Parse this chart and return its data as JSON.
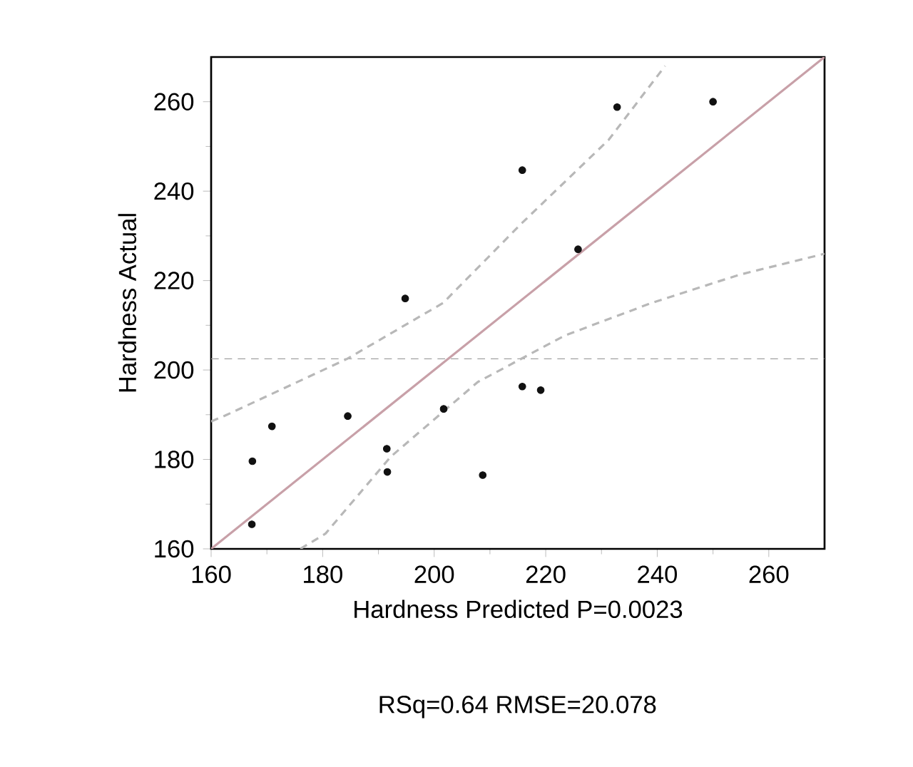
{
  "chart_data": {
    "type": "scatter",
    "xlabel": "Hardness Predicted P=0.0023",
    "ylabel": "Hardness Actual",
    "annotations": [
      "RSq=0.64 RMSE=20.078"
    ],
    "xlim": [
      160,
      270
    ],
    "ylim": [
      160,
      270
    ],
    "xticks": [
      160,
      180,
      200,
      220,
      240,
      260
    ],
    "yticks": [
      160,
      180,
      200,
      220,
      240,
      260
    ],
    "marker": "circle",
    "ref_lines": [
      {
        "axis": "y",
        "value": 202.5,
        "color": "#a0a0a0",
        "line_style": "dashed"
      }
    ],
    "series": [
      {
        "color": "#111111",
        "x": [
          167.3,
          167.4,
          170.9,
          184.5,
          191.5,
          191.6,
          194.8,
          201.7,
          208.7,
          215.8,
          215.8,
          219.1,
          225.8,
          232.8,
          250.0
        ],
        "values": [
          165.5,
          179.6,
          187.4,
          189.7,
          182.4,
          177.2,
          216.0,
          191.3,
          176.5,
          244.7,
          196.3,
          195.5,
          227.0,
          258.8,
          260.0
        ]
      },
      {
        "type": "line",
        "color": "#c8a0a8",
        "line_style": "solid",
        "marker": "none",
        "x": [
          160,
          270
        ],
        "values": [
          160,
          270
        ]
      },
      {
        "type": "line",
        "color": "#b8b8b8",
        "line_style": "dashed",
        "marker": "none",
        "x": [
          160,
          162.5,
          184.4,
          201.6,
          215.6,
          231.3,
          241.4
        ],
        "values": [
          188.5,
          189.8,
          202.5,
          215,
          232.7,
          251.5,
          268
        ]
      },
      {
        "type": "line",
        "color": "#b8b8b8",
        "line_style": "dashed",
        "marker": "none",
        "x": [
          176,
          180.5,
          192.2,
          207.8,
          223.4,
          239,
          254.7,
          270
        ],
        "values": [
          160,
          163.4,
          180.6,
          197.3,
          207.7,
          215,
          221.3,
          226
        ]
      }
    ]
  }
}
